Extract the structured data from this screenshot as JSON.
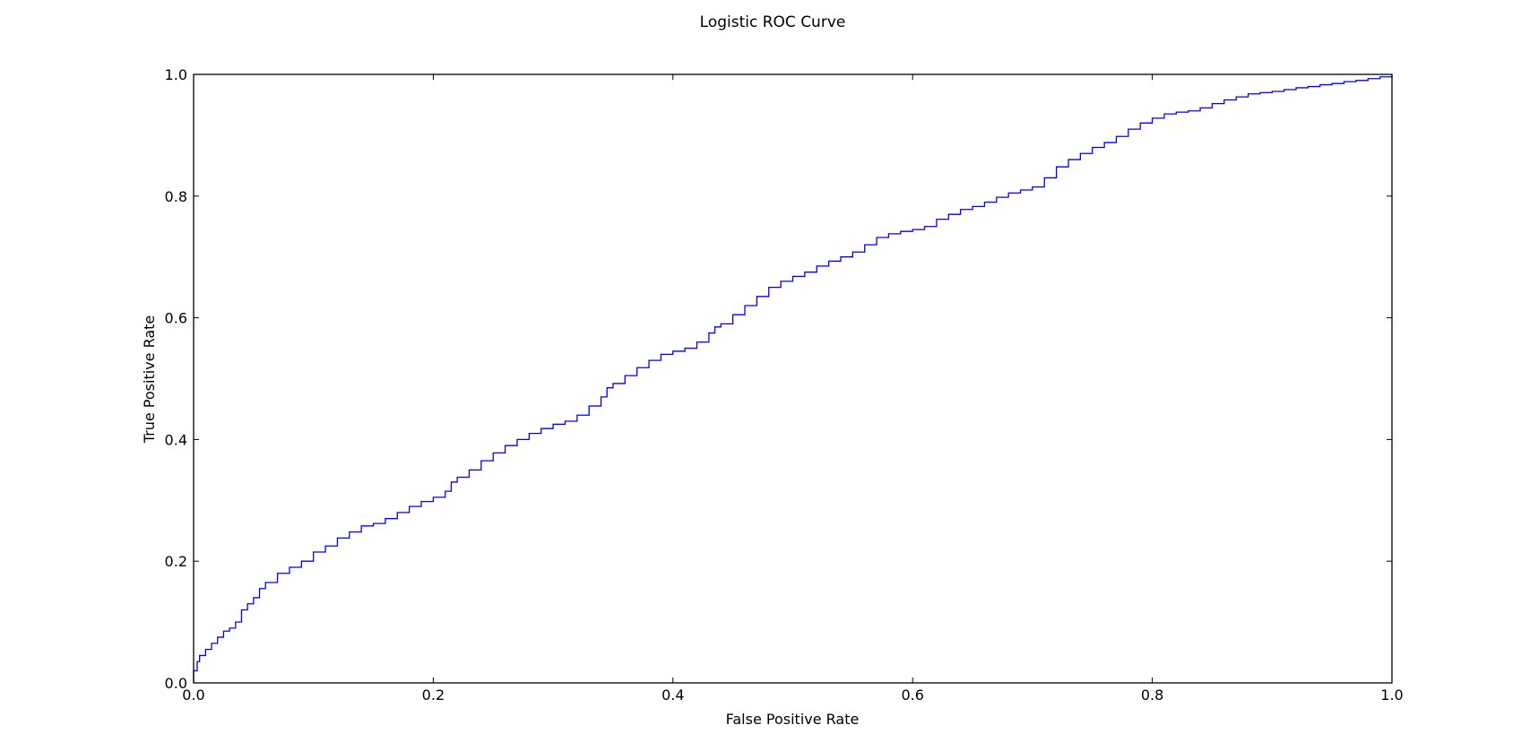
{
  "chart_data": {
    "type": "line",
    "title": "Logistic ROC Curve",
    "xlabel": "False Positive Rate",
    "ylabel": "True Positive Rate",
    "xlim": [
      0.0,
      1.0
    ],
    "ylim": [
      0.0,
      1.0
    ],
    "x_ticks": [
      "0.0",
      "0.2",
      "0.4",
      "0.6",
      "0.8",
      "1.0"
    ],
    "y_ticks": [
      "0.0",
      "0.2",
      "0.4",
      "0.6",
      "0.8",
      "1.0"
    ],
    "grid": false,
    "line_color": "#0000ff",
    "series": [
      {
        "x": [
          0.0,
          0.0,
          0.003,
          0.005,
          0.01,
          0.015,
          0.02,
          0.025,
          0.03,
          0.035,
          0.04,
          0.045,
          0.05,
          0.055,
          0.06,
          0.07,
          0.08,
          0.09,
          0.1,
          0.11,
          0.12,
          0.13,
          0.14,
          0.15,
          0.16,
          0.17,
          0.18,
          0.19,
          0.2,
          0.21,
          0.215,
          0.22,
          0.23,
          0.24,
          0.25,
          0.26,
          0.27,
          0.28,
          0.29,
          0.3,
          0.31,
          0.32,
          0.33,
          0.34,
          0.345,
          0.35,
          0.36,
          0.37,
          0.38,
          0.39,
          0.4,
          0.41,
          0.42,
          0.43,
          0.435,
          0.44,
          0.45,
          0.46,
          0.47,
          0.48,
          0.49,
          0.5,
          0.51,
          0.52,
          0.53,
          0.54,
          0.55,
          0.56,
          0.57,
          0.58,
          0.59,
          0.6,
          0.61,
          0.62,
          0.63,
          0.64,
          0.65,
          0.66,
          0.67,
          0.68,
          0.69,
          0.7,
          0.71,
          0.72,
          0.73,
          0.74,
          0.75,
          0.76,
          0.77,
          0.78,
          0.79,
          0.8,
          0.81,
          0.82,
          0.83,
          0.84,
          0.85,
          0.86,
          0.87,
          0.88,
          0.89,
          0.9,
          0.91,
          0.92,
          0.93,
          0.94,
          0.95,
          0.96,
          0.97,
          0.98,
          0.99,
          1.0
        ],
        "y": [
          0.0,
          0.02,
          0.035,
          0.045,
          0.055,
          0.065,
          0.075,
          0.085,
          0.09,
          0.1,
          0.12,
          0.13,
          0.14,
          0.155,
          0.165,
          0.18,
          0.19,
          0.2,
          0.215,
          0.225,
          0.238,
          0.248,
          0.258,
          0.262,
          0.27,
          0.28,
          0.29,
          0.298,
          0.305,
          0.315,
          0.33,
          0.338,
          0.35,
          0.365,
          0.378,
          0.39,
          0.4,
          0.41,
          0.418,
          0.425,
          0.43,
          0.44,
          0.455,
          0.47,
          0.485,
          0.492,
          0.505,
          0.518,
          0.53,
          0.54,
          0.545,
          0.55,
          0.56,
          0.575,
          0.585,
          0.59,
          0.605,
          0.62,
          0.635,
          0.65,
          0.66,
          0.668,
          0.675,
          0.685,
          0.693,
          0.7,
          0.708,
          0.72,
          0.732,
          0.738,
          0.742,
          0.745,
          0.75,
          0.762,
          0.77,
          0.778,
          0.783,
          0.79,
          0.798,
          0.805,
          0.81,
          0.815,
          0.83,
          0.848,
          0.86,
          0.87,
          0.88,
          0.888,
          0.898,
          0.91,
          0.92,
          0.928,
          0.935,
          0.938,
          0.94,
          0.945,
          0.952,
          0.958,
          0.963,
          0.968,
          0.97,
          0.972,
          0.975,
          0.978,
          0.98,
          0.983,
          0.985,
          0.988,
          0.99,
          0.993,
          0.996,
          1.0
        ]
      }
    ]
  }
}
